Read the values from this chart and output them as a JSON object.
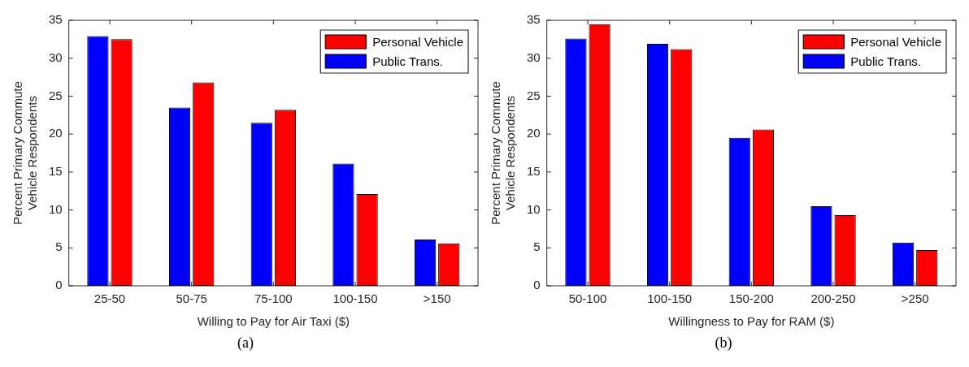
{
  "chart_data": [
    {
      "type": "bar",
      "categories": [
        "25-50",
        "50-75",
        "75-100",
        "100-150",
        ">150"
      ],
      "xlabel": "Willing to Pay for Air Taxi ($)",
      "ylabel": "Percent Primary Commute Vehicle Respondents",
      "ylim": [
        0,
        35
      ],
      "yticks": [
        0,
        5,
        10,
        15,
        20,
        25,
        30,
        35
      ],
      "grid": false,
      "legend": "top right",
      "annotations": [
        "(a)"
      ],
      "series": [
        {
          "name": "Public Trans.",
          "color": "#0000ff",
          "values": [
            32.9,
            23.5,
            21.5,
            16.1,
            6.1
          ]
        },
        {
          "name": "Personal Vehicle",
          "color": "#ff0000",
          "values": [
            32.5,
            26.8,
            23.2,
            12.1,
            5.6
          ]
        }
      ]
    },
    {
      "type": "bar",
      "categories": [
        "50-100",
        "100-150",
        "150-200",
        "200-250",
        ">250"
      ],
      "xlabel": "Willingness to Pay for RAM ($)",
      "ylabel": "Percent Primary Commute Vehicle Respondents",
      "ylim": [
        0,
        35
      ],
      "yticks": [
        0,
        5,
        10,
        15,
        20,
        25,
        30,
        35
      ],
      "grid": false,
      "legend": "top right",
      "annotations": [
        "(b)"
      ],
      "series": [
        {
          "name": "Public Trans.",
          "color": "#0000ff",
          "values": [
            32.6,
            31.9,
            19.5,
            10.5,
            5.7
          ]
        },
        {
          "name": "Personal Vehicle",
          "color": "#ff0000",
          "values": [
            34.5,
            31.2,
            20.6,
            9.3,
            4.7
          ]
        }
      ]
    }
  ]
}
